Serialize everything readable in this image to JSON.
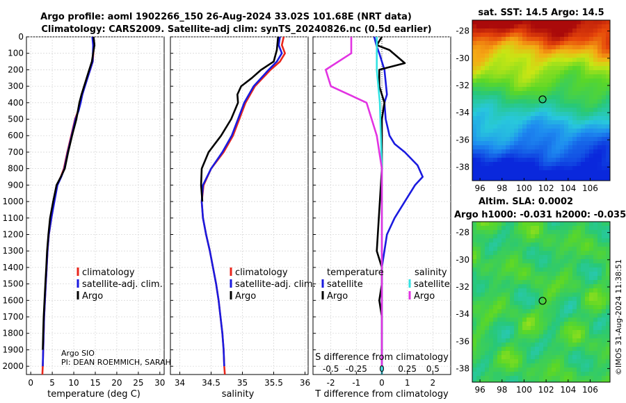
{
  "header": {
    "title_line1": "Argo profile: aoml 1902266_150 26-Aug-2024 33.02S 101.68E (NRT data)",
    "title_line2": "Climatology: CARS2009. Satellite-adj clim: synTS_20240826.nc (0.5d earlier)"
  },
  "colors": {
    "climatology": "#e8261c",
    "satellite": "#1a1adf",
    "argo": "#000000",
    "sat_salinity": "#33e3e3",
    "argo_salinity": "#e233e2"
  },
  "chart_data": [
    {
      "id": "temperature",
      "type": "line",
      "xlabel": "temperature (deg C)",
      "ylabel": "",
      "xlim": [
        -1,
        31
      ],
      "ylim": [
        2050,
        0
      ],
      "xticks": [
        "0",
        "5",
        "10",
        "15",
        "20",
        "25",
        "30"
      ],
      "yticks": [
        "0",
        "100",
        "200",
        "300",
        "400",
        "500",
        "600",
        "700",
        "800",
        "900",
        "1000",
        "1100",
        "1200",
        "1300",
        "1400",
        "1500",
        "1600",
        "1700",
        "1800",
        "1900",
        "2000"
      ],
      "legend": [
        "climatology",
        "satellite-adj. clim.",
        "Argo"
      ],
      "annotations": [
        "Argo SIO",
        "PI: DEAN ROEMMICH, SARAH"
      ],
      "series": [
        {
          "name": "climatology",
          "x": [
            14.6,
            14.7,
            14.4,
            13.8,
            12.5,
            12.0,
            11.5,
            11.0,
            10.3,
            9.4,
            8.5,
            7.7,
            7.0,
            6.1,
            5.4,
            4.8,
            4.2,
            3.9,
            3.7,
            3.5,
            3.3,
            3.1,
            3.0,
            2.9,
            2.8,
            2.7
          ],
          "y": [
            0,
            50,
            150,
            200,
            300,
            350,
            400,
            450,
            500,
            600,
            700,
            800,
            850,
            900,
            1000,
            1100,
            1200,
            1300,
            1400,
            1500,
            1600,
            1700,
            1800,
            1900,
            2000,
            2050
          ]
        },
        {
          "name": "satellite-adj. clim.",
          "x": [
            14.3,
            14.5,
            14.4,
            13.8,
            12.6,
            12.0,
            11.6,
            11.1,
            10.4,
            9.5,
            8.6,
            7.8,
            7.1,
            6.2,
            5.5,
            4.8,
            4.2,
            3.9,
            3.7,
            3.5,
            3.3,
            3.1,
            3.0,
            2.9,
            2.8
          ],
          "y": [
            0,
            50,
            150,
            200,
            300,
            350,
            400,
            450,
            500,
            600,
            700,
            800,
            850,
            900,
            1000,
            1100,
            1200,
            1300,
            1400,
            1500,
            1600,
            1700,
            1800,
            1900,
            2000
          ]
        },
        {
          "name": "Argo",
          "x": [
            14.6,
            14.8,
            14.5,
            14.2,
            13.6,
            12.4,
            11.8,
            11.3,
            10.6,
            9.6,
            8.7,
            7.9,
            7.0,
            6.0,
            5.2,
            4.5,
            4.1,
            3.8,
            3.6,
            3.4,
            3.2,
            3.0,
            2.9,
            2.8
          ],
          "y": [
            0,
            50,
            100,
            150,
            200,
            300,
            350,
            400,
            500,
            600,
            700,
            800,
            850,
            900,
            1000,
            1100,
            1200,
            1300,
            1400,
            1500,
            1600,
            1700,
            1800,
            1900
          ]
        }
      ]
    },
    {
      "id": "salinity",
      "type": "line",
      "xlabel": "salinity",
      "xlim": [
        33.85,
        36.05
      ],
      "ylim": [
        2050,
        0
      ],
      "xticks": [
        "34",
        "34.5",
        "35",
        "35.5",
        "36"
      ],
      "legend": [
        "climatology",
        "satellite-adj. clim.",
        "Argo"
      ],
      "series": [
        {
          "name": "climatology",
          "x": [
            35.66,
            35.63,
            35.68,
            35.6,
            35.45,
            35.2,
            35.05,
            34.95,
            34.85,
            34.7,
            34.5,
            34.38,
            34.35,
            34.37,
            34.42,
            34.48,
            34.53,
            34.58,
            34.62,
            34.65,
            34.68,
            34.7,
            34.71,
            34.72
          ],
          "y": [
            0,
            50,
            100,
            150,
            200,
            300,
            400,
            500,
            600,
            700,
            800,
            900,
            1000,
            1100,
            1200,
            1300,
            1400,
            1500,
            1600,
            1700,
            1800,
            1900,
            2000,
            2050
          ]
        },
        {
          "name": "satellite-adj. clim.",
          "x": [
            35.6,
            35.58,
            35.63,
            35.55,
            35.42,
            35.18,
            35.03,
            34.93,
            34.83,
            34.68,
            34.5,
            34.37,
            34.35,
            34.37,
            34.42,
            34.48,
            34.53,
            34.58,
            34.62,
            34.65,
            34.68,
            34.7,
            34.71
          ],
          "y": [
            0,
            50,
            100,
            150,
            200,
            300,
            400,
            500,
            600,
            700,
            800,
            900,
            1000,
            1100,
            1200,
            1300,
            1400,
            1500,
            1600,
            1700,
            1800,
            1900,
            2000
          ]
        },
        {
          "name": "Argo",
          "x": [
            35.57,
            35.55,
            35.5,
            35.3,
            35.15,
            34.98,
            34.92,
            34.93,
            34.82,
            34.66,
            34.46,
            34.35,
            34.34,
            34.36
          ],
          "y": [
            0,
            80,
            150,
            200,
            250,
            300,
            350,
            400,
            500,
            600,
            700,
            800,
            900,
            1000
          ]
        }
      ]
    },
    {
      "id": "difference",
      "type": "line",
      "xlabel": "T difference from climatology",
      "xlim": [
        -2.7,
        2.7
      ],
      "ylim": [
        2050,
        0
      ],
      "xticks": [
        "-2",
        "-1",
        "0",
        "1",
        "2"
      ],
      "extra_ticks": [
        "-0.5",
        "-0.25",
        "0",
        "0.25",
        "0.5"
      ],
      "extra_label": "S difference from climatology",
      "legend_temperature": "temperature",
      "legend_salinity": "salinity",
      "legend_items": [
        "satellite",
        "Argo",
        "satellite",
        "Argo"
      ],
      "series": [
        {
          "name": "temperature satellite",
          "x": [
            -0.3,
            -0.2,
            -0.1,
            0.1,
            0.2,
            0.1,
            0.15,
            0.3,
            0.5,
            0.9,
            1.4,
            1.6,
            1.3,
            0.9,
            0.5,
            0.2,
            0.0,
            0.0,
            0.0,
            0.0,
            0.0,
            0.0
          ],
          "y": [
            0,
            60,
            100,
            200,
            350,
            400,
            500,
            600,
            650,
            700,
            780,
            850,
            900,
            1000,
            1100,
            1200,
            1400,
            1600,
            1800,
            1900,
            2000,
            2050
          ]
        },
        {
          "name": "temperature Argo",
          "x": [
            0.0,
            -0.2,
            0.3,
            0.9,
            -0.1,
            -0.1,
            0.1,
            0.0,
            0.0,
            -0.2,
            0.0,
            0.0,
            -0.1,
            0.0,
            0.0,
            0.0
          ],
          "y": [
            0,
            50,
            80,
            160,
            200,
            300,
            400,
            500,
            800,
            1300,
            1400,
            1500,
            1600,
            1700,
            1900,
            2000
          ]
        },
        {
          "name": "salinity satellite",
          "x": [
            -0.05,
            -0.05,
            -0.02,
            0.0,
            0.0,
            0.0,
            0.0
          ],
          "y": [
            0,
            200,
            400,
            800,
            1200,
            1600,
            2050
          ]
        },
        {
          "name": "salinity Argo",
          "x": [
            -0.3,
            -0.3,
            -0.55,
            -0.5,
            -0.15,
            -0.05,
            0.0,
            0.0,
            0.0,
            0.0
          ],
          "y": [
            0,
            100,
            200,
            300,
            400,
            600,
            800,
            1200,
            1600,
            2000
          ]
        }
      ]
    }
  ],
  "maps": [
    {
      "id": "sst",
      "title": "sat. SST: 14.5 Argo: 14.5",
      "xticks": [
        "96",
        "98",
        "100",
        "102",
        "104",
        "106"
      ],
      "yticks": [
        "-28",
        "-30",
        "-32",
        "-34",
        "-36",
        "-38"
      ],
      "xlim": [
        95.3,
        107.8
      ],
      "ylim": [
        -39,
        -27.2
      ],
      "marker": {
        "lon": 101.68,
        "lat": -33.02
      }
    },
    {
      "id": "sla",
      "title1": "Altim. SLA: 0.0002",
      "title2": "Argo h1000: -0.031 h2000: -0.035",
      "xticks": [
        "96",
        "98",
        "100",
        "102",
        "104",
        "106"
      ],
      "yticks": [
        "-28",
        "-30",
        "-32",
        "-34",
        "-36",
        "-38"
      ],
      "xlim": [
        95.3,
        107.8
      ],
      "ylim": [
        -39,
        -27.2
      ],
      "marker": {
        "lon": 101.68,
        "lat": -33.02
      }
    }
  ],
  "side_label": "©IMOS 31-Aug-2024 11:38:51"
}
